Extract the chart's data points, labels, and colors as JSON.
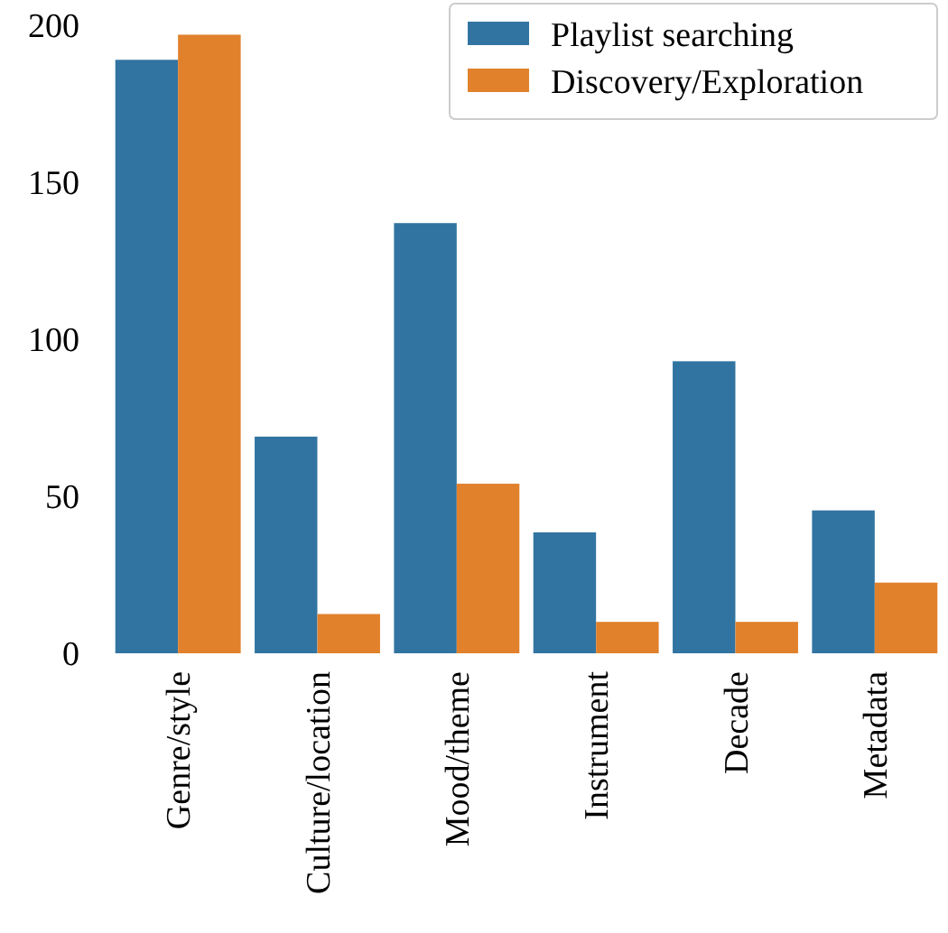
{
  "chart_data": {
    "type": "bar",
    "categories": [
      "Genre/style",
      "Culture/location",
      "Mood/theme",
      "Instrument",
      "Decade",
      "Metadata"
    ],
    "series": [
      {
        "name": "Playlist searching",
        "color": "#3274a1",
        "values": [
          189,
          69,
          137,
          38.5,
          93,
          45.5
        ]
      },
      {
        "name": "Discovery/Exploration",
        "color": "#e1812c",
        "values": [
          197,
          12.5,
          54,
          10,
          10,
          22.5
        ]
      }
    ],
    "ylim": [
      0,
      200
    ],
    "yticks": [
      0,
      50,
      100,
      150,
      200
    ],
    "legend": "top right"
  }
}
